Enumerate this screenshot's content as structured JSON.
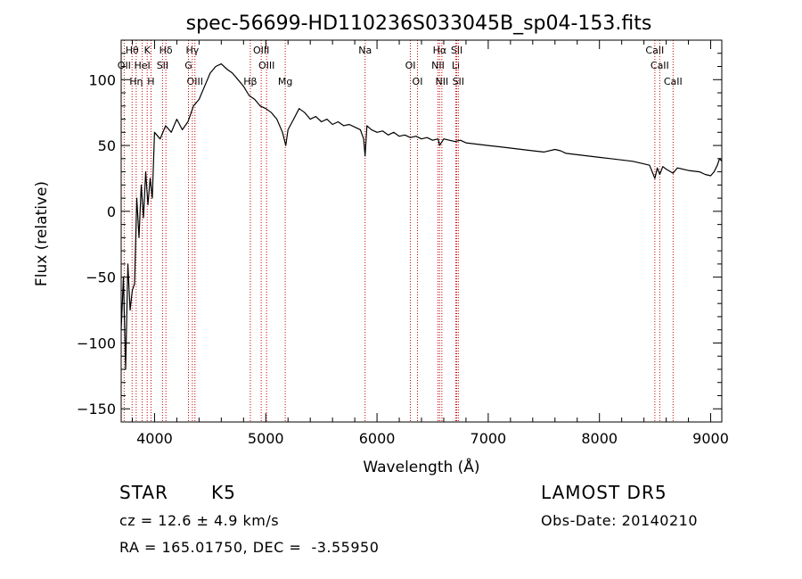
{
  "chart_data": {
    "type": "line",
    "title": "spec-56699-HD110236S033045B_sp04-153.fits",
    "xlabel": "Wavelength (Å)",
    "ylabel": "Flux (relative)",
    "xlim": [
      3700,
      9100
    ],
    "ylim": [
      -160,
      130
    ],
    "xticks": [
      4000,
      5000,
      6000,
      7000,
      8000,
      9000
    ],
    "yticks": [
      -150,
      -100,
      -50,
      0,
      50,
      100
    ],
    "grid": false,
    "series": [
      {
        "color": "#000000",
        "x": [
          3700,
          3720,
          3740,
          3760,
          3780,
          3800,
          3820,
          3840,
          3860,
          3880,
          3900,
          3920,
          3940,
          3960,
          3980,
          4000,
          4050,
          4100,
          4150,
          4200,
          4250,
          4300,
          4350,
          4400,
          4450,
          4500,
          4550,
          4600,
          4650,
          4700,
          4750,
          4800,
          4850,
          4900,
          4950,
          5000,
          5050,
          5100,
          5150,
          5180,
          5200,
          5250,
          5300,
          5350,
          5400,
          5450,
          5500,
          5550,
          5600,
          5650,
          5700,
          5750,
          5800,
          5850,
          5880,
          5893,
          5910,
          5950,
          6000,
          6050,
          6100,
          6150,
          6200,
          6250,
          6300,
          6350,
          6400,
          6450,
          6500,
          6550,
          6563,
          6600,
          6650,
          6700,
          6750,
          6800,
          6900,
          7000,
          7100,
          7200,
          7300,
          7400,
          7500,
          7600,
          7650,
          7700,
          7800,
          7900,
          8000,
          8100,
          8200,
          8300,
          8400,
          8450,
          8498,
          8520,
          8542,
          8570,
          8600,
          8662,
          8700,
          8800,
          8900,
          8950,
          9000,
          9030,
          9060,
          9080,
          9100
        ],
        "y": [
          -90,
          -50,
          -120,
          -40,
          -75,
          -60,
          -55,
          10,
          -20,
          20,
          -5,
          30,
          5,
          25,
          10,
          60,
          55,
          65,
          60,
          70,
          62,
          68,
          80,
          85,
          95,
          105,
          110,
          112,
          108,
          105,
          100,
          95,
          88,
          85,
          80,
          78,
          75,
          70,
          60,
          50,
          62,
          70,
          78,
          75,
          70,
          72,
          68,
          70,
          66,
          68,
          65,
          66,
          64,
          62,
          55,
          42,
          65,
          62,
          60,
          61,
          58,
          60,
          57,
          58,
          56,
          57,
          55,
          56,
          54,
          55,
          50,
          55,
          54,
          53,
          54,
          52,
          51,
          50,
          49,
          48,
          47,
          46,
          45,
          47,
          46,
          44,
          43,
          42,
          41,
          40,
          39,
          38,
          36,
          35,
          25,
          33,
          28,
          34,
          32,
          29,
          33,
          31,
          30,
          28,
          27,
          30,
          35,
          40,
          38
        ]
      }
    ],
    "lines": [
      {
        "label": "Hθ",
        "x": 3798
      },
      {
        "label": "OII",
        "x": 3727
      },
      {
        "label": "Hη",
        "x": 3835
      },
      {
        "label": "K",
        "x": 3934
      },
      {
        "label": "HeI",
        "x": 3889
      },
      {
        "label": "H",
        "x": 3968
      },
      {
        "label": "Hδ",
        "x": 4102
      },
      {
        "label": "SII",
        "x": 4072
      },
      {
        "label": "OIII",
        "x": 4363
      },
      {
        "label": "Hγ",
        "x": 4340
      },
      {
        "label": "G",
        "x": 4305
      },
      {
        "label": "Hβ",
        "x": 4861
      },
      {
        "label": "OIII",
        "x": 4959
      },
      {
        "label": "OIII",
        "x": 5007
      },
      {
        "label": "Mg",
        "x": 5175
      },
      {
        "label": "Na",
        "x": 5893
      },
      {
        "label": "OI",
        "x": 6300
      },
      {
        "label": "OI",
        "x": 6364
      },
      {
        "label": "Hα",
        "x": 6563
      },
      {
        "label": "NII",
        "x": 6548
      },
      {
        "label": "NII",
        "x": 6583
      },
      {
        "label": "SII",
        "x": 6717
      },
      {
        "label": "Li",
        "x": 6708
      },
      {
        "label": "SII",
        "x": 6731
      },
      {
        "label": "CaII",
        "x": 8498
      },
      {
        "label": "CaII",
        "x": 8542
      },
      {
        "label": "CaII",
        "x": 8662
      }
    ]
  },
  "info": {
    "class": "STAR",
    "subclass": "K5",
    "survey": "LAMOST DR5",
    "cz": "cz = 12.6 ± 4.9 km/s",
    "obs_date": "Obs-Date: 20140210",
    "radec": "RA = 165.01750, DEC =  -3.55950"
  }
}
